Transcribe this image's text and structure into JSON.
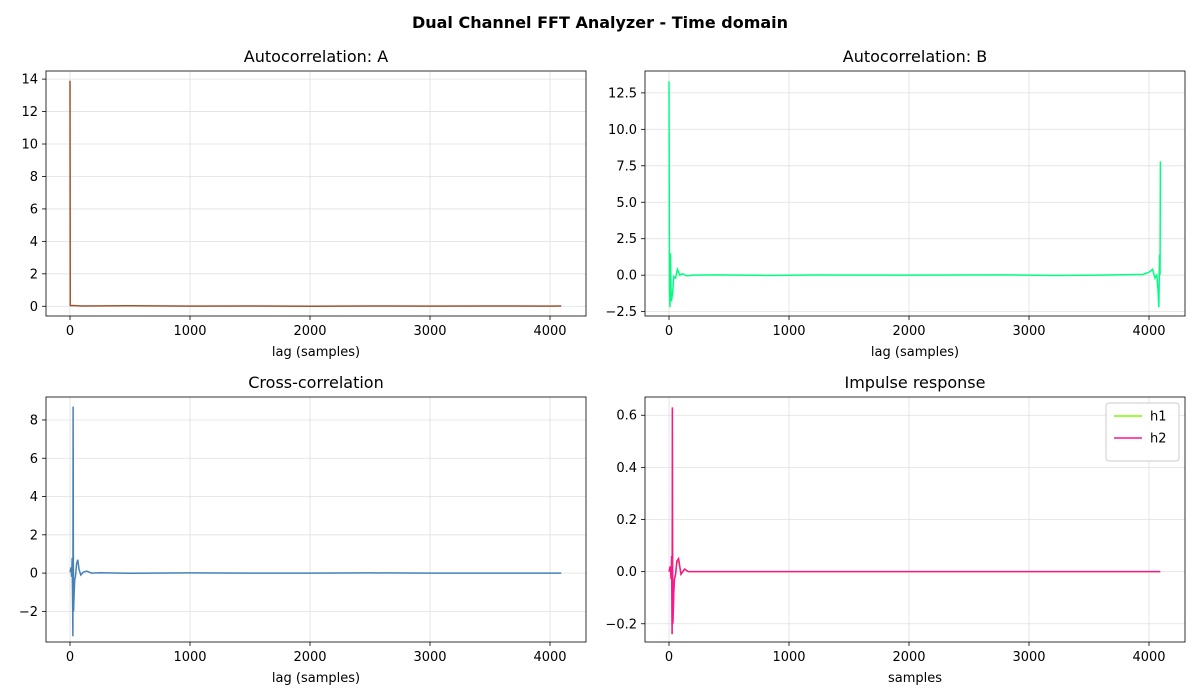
{
  "figure": {
    "title": "Dual Channel FFT Analyzer - Time domain"
  },
  "chart_data": [
    {
      "type": "line",
      "title": "Autocorrelation: A",
      "xlabel": "lag (samples)",
      "ylabel": "",
      "xlim": [
        -200,
        4300
      ],
      "ylim": [
        -0.6,
        14.5
      ],
      "xticks": [
        0,
        1000,
        2000,
        3000,
        4000
      ],
      "yticks": [
        0,
        2,
        4,
        6,
        8,
        10,
        12,
        14
      ],
      "ytick_labels": [
        "0",
        "2",
        "4",
        "6",
        "8",
        "10",
        "12",
        "14"
      ],
      "grid": true,
      "series": [
        {
          "color": "#a0522d",
          "x": [
            0,
            2,
            4,
            8,
            16,
            100,
            500,
            1000,
            1500,
            2000,
            2500,
            3000,
            3500,
            4000,
            4094
          ],
          "y": [
            13.9,
            0.05,
            0.05,
            0.04,
            0.05,
            0.02,
            0.03,
            0.01,
            0.02,
            0.0,
            0.02,
            0.01,
            0.02,
            0.01,
            0.02
          ]
        }
      ]
    },
    {
      "type": "line",
      "title": "Autocorrelation: B",
      "xlabel": "lag (samples)",
      "ylabel": "",
      "xlim": [
        -200,
        4300
      ],
      "ylim": [
        -2.8,
        14.0
      ],
      "xticks": [
        0,
        1000,
        2000,
        3000,
        4000
      ],
      "yticks": [
        -2.5,
        0,
        2.5,
        5,
        7.5,
        10,
        12.5
      ],
      "ytick_labels": [
        "−2.5",
        "0.0",
        "2.5",
        "5.0",
        "7.5",
        "10.0",
        "12.5"
      ],
      "grid": true,
      "series": [
        {
          "color": "#00ff7f",
          "x": [
            0,
            4,
            8,
            12,
            16,
            20,
            30,
            40,
            55,
            70,
            90,
            110,
            150,
            200,
            400,
            800,
            1200,
            2000,
            2800,
            3200,
            3600,
            3900,
            3950,
            4000,
            4030,
            4050,
            4065,
            4075,
            4082,
            4088,
            4092,
            4095
          ],
          "y": [
            13.3,
            -1.0,
            -2.2,
            1.5,
            -0.8,
            -1.8,
            -1.2,
            -0.1,
            -0.2,
            0.4,
            0.0,
            0.1,
            -0.05,
            0.0,
            0.02,
            -0.02,
            0.01,
            0.0,
            0.02,
            -0.02,
            0.0,
            0.05,
            0.05,
            0.2,
            0.4,
            -0.2,
            0.0,
            -1.0,
            -2.2,
            1.4,
            0.0,
            7.8
          ]
        }
      ]
    },
    {
      "type": "line",
      "title": "Cross-correlation",
      "xlabel": "lag (samples)",
      "ylabel": "",
      "xlim": [
        -200,
        4300
      ],
      "ylim": [
        -3.6,
        9.2
      ],
      "xticks": [
        0,
        1000,
        2000,
        3000,
        4000
      ],
      "yticks": [
        -2,
        0,
        2,
        4,
        6,
        8
      ],
      "ytick_labels": [
        "−2",
        "0",
        "2",
        "4",
        "6",
        "8"
      ],
      "grid": true,
      "series": [
        {
          "color": "#4682b4",
          "x": [
            0,
            8,
            14,
            18,
            22,
            24,
            26,
            28,
            30,
            32,
            36,
            40,
            45,
            55,
            65,
            75,
            90,
            110,
            140,
            180,
            250,
            500,
            1000,
            1500,
            2000,
            2500,
            3000,
            3500,
            4094
          ],
          "y": [
            0.05,
            0.3,
            -0.2,
            0.8,
            -1.8,
            -3.3,
            8.7,
            0.5,
            -2.0,
            -1.5,
            -0.8,
            -0.3,
            -0.2,
            0.5,
            0.7,
            0.2,
            -0.1,
            0.05,
            0.1,
            0.0,
            0.02,
            -0.01,
            0.01,
            0.0,
            0.0,
            0.01,
            0.0,
            0.0,
            0.0
          ]
        }
      ]
    },
    {
      "type": "line",
      "title": "Impulse response",
      "xlabel": "samples",
      "ylabel": "",
      "xlim": [
        -200,
        4300
      ],
      "ylim": [
        -0.27,
        0.67
      ],
      "xticks": [
        0,
        1000,
        2000,
        3000,
        4000
      ],
      "yticks": [
        -0.2,
        0,
        0.2,
        0.4,
        0.6
      ],
      "ytick_labels": [
        "−0.2",
        "0.0",
        "0.2",
        "0.4",
        "0.6"
      ],
      "grid": true,
      "legend": "top-right",
      "series": [
        {
          "name": "h1",
          "color": "#7cfc00",
          "x": [
            0,
            10,
            18,
            22,
            24,
            26,
            28,
            30,
            32,
            36,
            40,
            45,
            55,
            65,
            80,
            100,
            130,
            160,
            200,
            300,
            1000,
            2000,
            3000,
            4094
          ],
          "y": [
            0.0,
            0.02,
            -0.03,
            0.05,
            -0.1,
            -0.24,
            0.62,
            0.02,
            -0.2,
            -0.15,
            -0.08,
            -0.03,
            -0.01,
            0.03,
            0.04,
            -0.01,
            0.01,
            0.0,
            0.0,
            0.0,
            0.0,
            0.0,
            0.0,
            0.0
          ]
        },
        {
          "name": "h2",
          "color": "#ff1493",
          "x": [
            0,
            10,
            18,
            22,
            24,
            26,
            28,
            30,
            32,
            36,
            40,
            45,
            55,
            65,
            80,
            100,
            130,
            160,
            200,
            300,
            1000,
            2000,
            3000,
            4094
          ],
          "y": [
            0.0,
            0.02,
            -0.03,
            0.06,
            -0.11,
            -0.24,
            0.63,
            0.02,
            -0.2,
            -0.15,
            -0.08,
            -0.03,
            -0.01,
            0.04,
            0.05,
            -0.01,
            0.01,
            0.0,
            0.0,
            0.0,
            0.0,
            0.0,
            0.0,
            0.0
          ]
        }
      ]
    }
  ]
}
